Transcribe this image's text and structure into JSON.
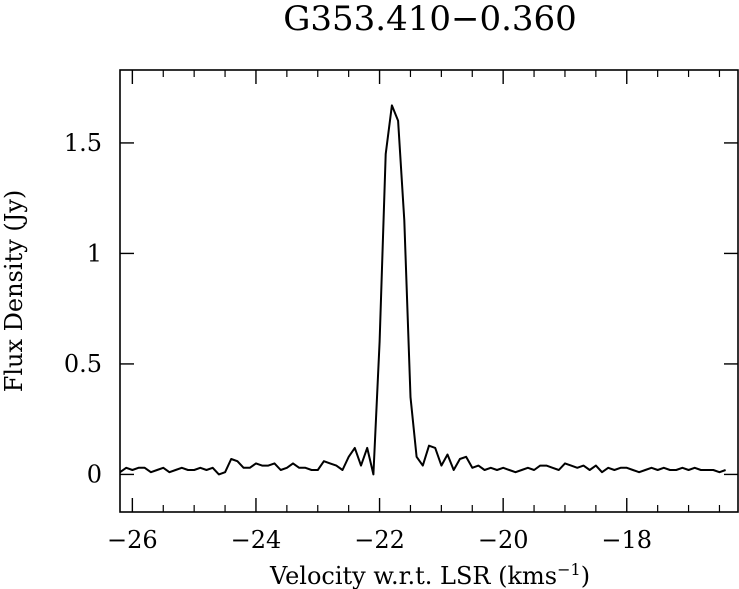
{
  "chart_data": {
    "type": "line",
    "title": "G353.410−0.360",
    "xlabel": "Velocity w.r.t. LSR (kms",
    "xlabel_sup": "−1",
    "xlabel_close": ")",
    "ylabel": "Flux Density (Jy)",
    "xlim": [
      -26.2,
      -16.2
    ],
    "ylim": [
      -0.17,
      1.83
    ],
    "x_major_ticks": [
      -26,
      -24,
      -22,
      -20,
      -18
    ],
    "x_tick_labels": [
      "−26",
      "−24",
      "−22",
      "−20",
      "−18"
    ],
    "y_major_ticks": [
      0,
      0.5,
      1,
      1.5
    ],
    "y_tick_labels": [
      "0",
      "0.5",
      "1",
      "1.5"
    ],
    "grid": false,
    "series": [
      {
        "x": [
          -26.2,
          -26.1,
          -26.0,
          -25.9,
          -25.8,
          -25.7,
          -25.6,
          -25.5,
          -25.4,
          -25.3,
          -25.2,
          -25.1,
          -25.0,
          -24.9,
          -24.8,
          -24.7,
          -24.6,
          -24.5,
          -24.4,
          -24.3,
          -24.2,
          -24.1,
          -24.0,
          -23.9,
          -23.8,
          -23.7,
          -23.6,
          -23.5,
          -23.4,
          -23.3,
          -23.2,
          -23.1,
          -23.0,
          -22.9,
          -22.8,
          -22.7,
          -22.6,
          -22.5,
          -22.4,
          -22.3,
          -22.2,
          -22.1,
          -22.0,
          -21.9,
          -21.8,
          -21.7,
          -21.6,
          -21.5,
          -21.4,
          -21.3,
          -21.2,
          -21.1,
          -21.0,
          -20.9,
          -20.8,
          -20.7,
          -20.6,
          -20.5,
          -20.4,
          -20.3,
          -20.2,
          -20.1,
          -20.0,
          -19.9,
          -19.8,
          -19.7,
          -19.6,
          -19.5,
          -19.4,
          -19.3,
          -19.2,
          -19.1,
          -19.0,
          -18.9,
          -18.8,
          -18.7,
          -18.6,
          -18.5,
          -18.4,
          -18.3,
          -18.2,
          -18.1,
          -18.0,
          -17.9,
          -17.8,
          -17.7,
          -17.6,
          -17.5,
          -17.4,
          -17.3,
          -17.2,
          -17.1,
          -17.0,
          -16.9,
          -16.8,
          -16.7,
          -16.6,
          -16.5,
          -16.4
        ],
        "y": [
          0.01,
          0.03,
          0.02,
          0.03,
          0.03,
          0.01,
          0.02,
          0.03,
          0.01,
          0.02,
          0.03,
          0.02,
          0.02,
          0.03,
          0.02,
          0.03,
          0.0,
          0.01,
          0.07,
          0.06,
          0.03,
          0.03,
          0.05,
          0.04,
          0.04,
          0.05,
          0.02,
          0.03,
          0.05,
          0.03,
          0.03,
          0.02,
          0.02,
          0.06,
          0.05,
          0.04,
          0.02,
          0.08,
          0.12,
          0.04,
          0.12,
          0.0,
          0.6,
          1.45,
          1.67,
          1.6,
          1.15,
          0.35,
          0.08,
          0.04,
          0.13,
          0.12,
          0.04,
          0.09,
          0.02,
          0.07,
          0.08,
          0.03,
          0.04,
          0.02,
          0.03,
          0.02,
          0.03,
          0.02,
          0.01,
          0.02,
          0.03,
          0.02,
          0.04,
          0.04,
          0.03,
          0.02,
          0.05,
          0.04,
          0.03,
          0.04,
          0.02,
          0.04,
          0.01,
          0.03,
          0.02,
          0.03,
          0.03,
          0.02,
          0.01,
          0.02,
          0.03,
          0.02,
          0.03,
          0.02,
          0.02,
          0.03,
          0.02,
          0.03,
          0.02,
          0.02,
          0.02,
          0.01,
          0.02
        ]
      }
    ]
  }
}
